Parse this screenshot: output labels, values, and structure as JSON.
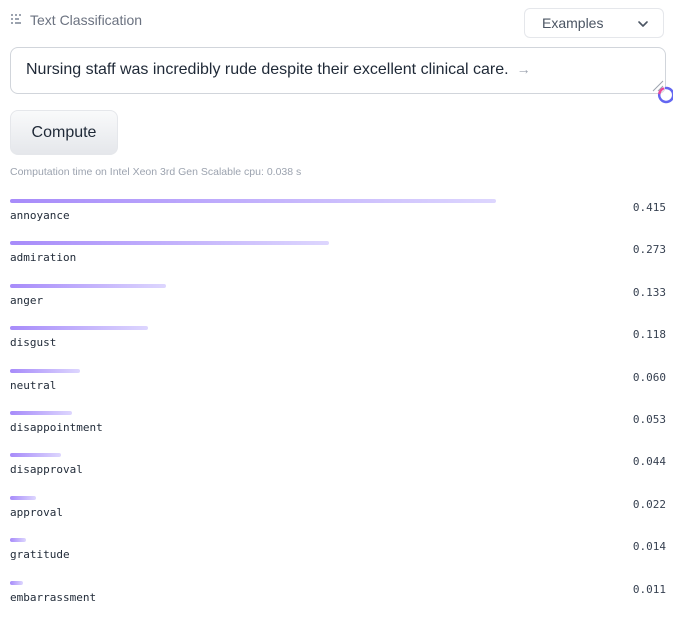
{
  "header": {
    "task_label": "Text Classification",
    "examples_label": "Examples"
  },
  "input": {
    "text": "Nursing staff was incredibly rude despite their excellent clinical care."
  },
  "compute": {
    "label": "Compute"
  },
  "computation_time": "Computation time on Intel Xeon 3rd Gen Scalable cpu: 0.038 s",
  "results": [
    {
      "label": "annoyance",
      "score": "0.415",
      "value": 0.415
    },
    {
      "label": "admiration",
      "score": "0.273",
      "value": 0.273
    },
    {
      "label": "anger",
      "score": "0.133",
      "value": 0.133
    },
    {
      "label": "disgust",
      "score": "0.118",
      "value": 0.118
    },
    {
      "label": "neutral",
      "score": "0.060",
      "value": 0.06
    },
    {
      "label": "disappointment",
      "score": "0.053",
      "value": 0.053
    },
    {
      "label": "disapproval",
      "score": "0.044",
      "value": 0.044
    },
    {
      "label": "approval",
      "score": "0.022",
      "value": 0.022
    },
    {
      "label": "gratitude",
      "score": "0.014",
      "value": 0.014
    },
    {
      "label": "embarrassment",
      "score": "0.011",
      "value": 0.011
    }
  ],
  "colors": {
    "bar_start": "#a78bfa",
    "bar_end": "#ddd6fe",
    "spinner": "#6366f1"
  },
  "icons": {
    "task": "text-classification-icon",
    "dropdown": "chevron-down-icon",
    "submit": "arrow-right-icon",
    "loading": "spinner-icon"
  }
}
